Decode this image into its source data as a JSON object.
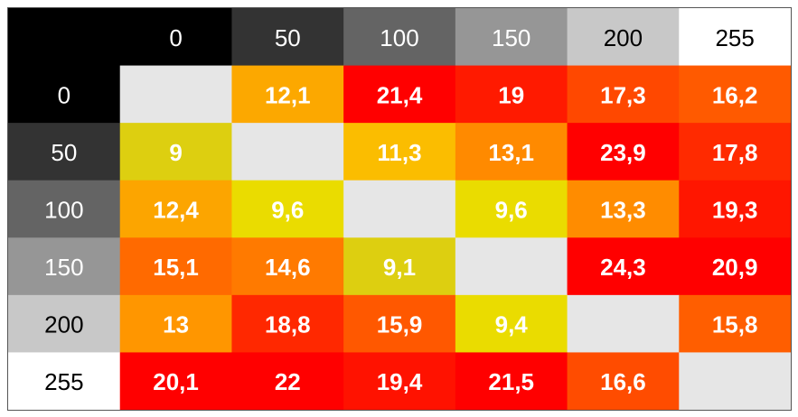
{
  "chart_data": {
    "type": "heatmap",
    "columns": [
      "0",
      "50",
      "100",
      "150",
      "200",
      "255"
    ],
    "rows": [
      "0",
      "50",
      "100",
      "150",
      "200",
      "255"
    ],
    "header_colors": [
      "#000000",
      "#333333",
      "#646464",
      "#969696",
      "#c8c8c8",
      "#ffffff"
    ],
    "header_text_colors": [
      "#ffffff",
      "#ffffff",
      "#ffffff",
      "#ffffff",
      "#000000",
      "#000000"
    ],
    "values": [
      [
        "",
        "12,1",
        "21,4",
        "19",
        "17,3",
        "16,2"
      ],
      [
        "9",
        "",
        "11,3",
        "13,1",
        "23,9",
        "17,8"
      ],
      [
        "12,4",
        "9,6",
        "",
        "9,6",
        "13,3",
        "19,3"
      ],
      [
        "15,1",
        "14,6",
        "9,1",
        "",
        "24,3",
        "20,9"
      ],
      [
        "13",
        "18,8",
        "15,9",
        "9,4",
        "",
        "15,8"
      ],
      [
        "20,1",
        "22",
        "19,4",
        "21,5",
        "16,6",
        ""
      ]
    ],
    "cell_colors": [
      [
        "#e6e6e6",
        "#fca800",
        "#ff0000",
        "#ff1a00",
        "#ff4800",
        "#ff5a00"
      ],
      [
        "#ddcf10",
        "#e6e6e6",
        "#fbbd00",
        "#ff8a00",
        "#ff0000",
        "#ff2a00"
      ],
      [
        "#fca500",
        "#eadc00",
        "#e6e6e6",
        "#eadc00",
        "#ff8c00",
        "#ff1600"
      ],
      [
        "#ff6a00",
        "#ff7a00",
        "#ddcf10",
        "#e6e6e6",
        "#ff0000",
        "#ff0000"
      ],
      [
        "#ff9600",
        "#ff2800",
        "#ff5800",
        "#eadc00",
        "#e6e6e6",
        "#ff5e00"
      ],
      [
        "#ff0000",
        "#ff0000",
        "#ff1200",
        "#ff0000",
        "#ff4c00",
        "#e6e6e6"
      ]
    ]
  }
}
